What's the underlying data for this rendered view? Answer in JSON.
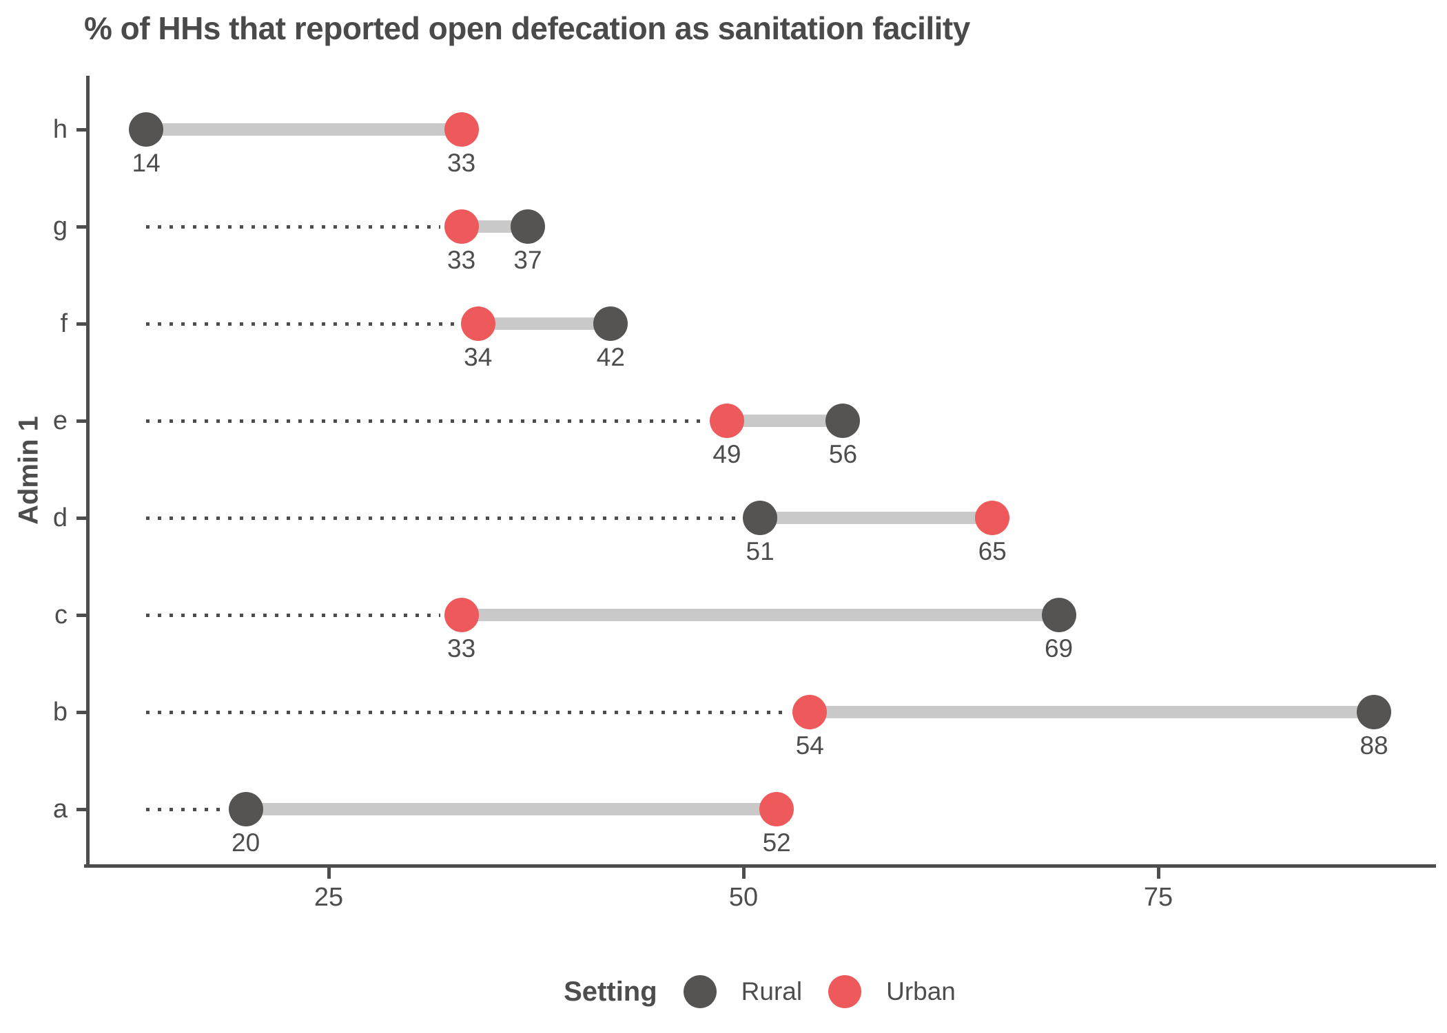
{
  "title": "% of HHs that reported open defecation as sanitation facility",
  "y_axis_title": "Admin 1",
  "legend": {
    "title": "Setting",
    "entries": [
      {
        "label": "Rural",
        "color": "#565452"
      },
      {
        "label": "Urban",
        "color": "#EE5A5C"
      }
    ]
  },
  "colors": {
    "rural": "#565452",
    "urban": "#EE5A5C",
    "connector": "#C9C9C9",
    "leader": "#4d4d4d",
    "axis": "#4d4d4d",
    "label_text": "#4d4d4d",
    "title_text": "#4a4a4a",
    "background": "#FFFFFF"
  },
  "chart_data": {
    "type": "scatter",
    "variant": "dumbbell",
    "title": "% of HHs that reported open defecation as sanitation facility",
    "xlabel": "",
    "ylabel": "Admin 1",
    "categories": [
      "h",
      "g",
      "f",
      "e",
      "d",
      "c",
      "b",
      "a"
    ],
    "series": [
      {
        "name": "Rural",
        "color": "#565452",
        "values": [
          14,
          37,
          42,
          56,
          51,
          69,
          88,
          20
        ]
      },
      {
        "name": "Urban",
        "color": "#EE5A5C",
        "values": [
          33,
          33,
          34,
          49,
          65,
          33,
          54,
          52
        ]
      }
    ],
    "point_labels_shown": true,
    "leader_line_start": 14,
    "x_ticks": [
      25,
      50,
      75
    ],
    "xlim": [
      10,
      92
    ],
    "grid": false,
    "legend_position": "bottom"
  }
}
